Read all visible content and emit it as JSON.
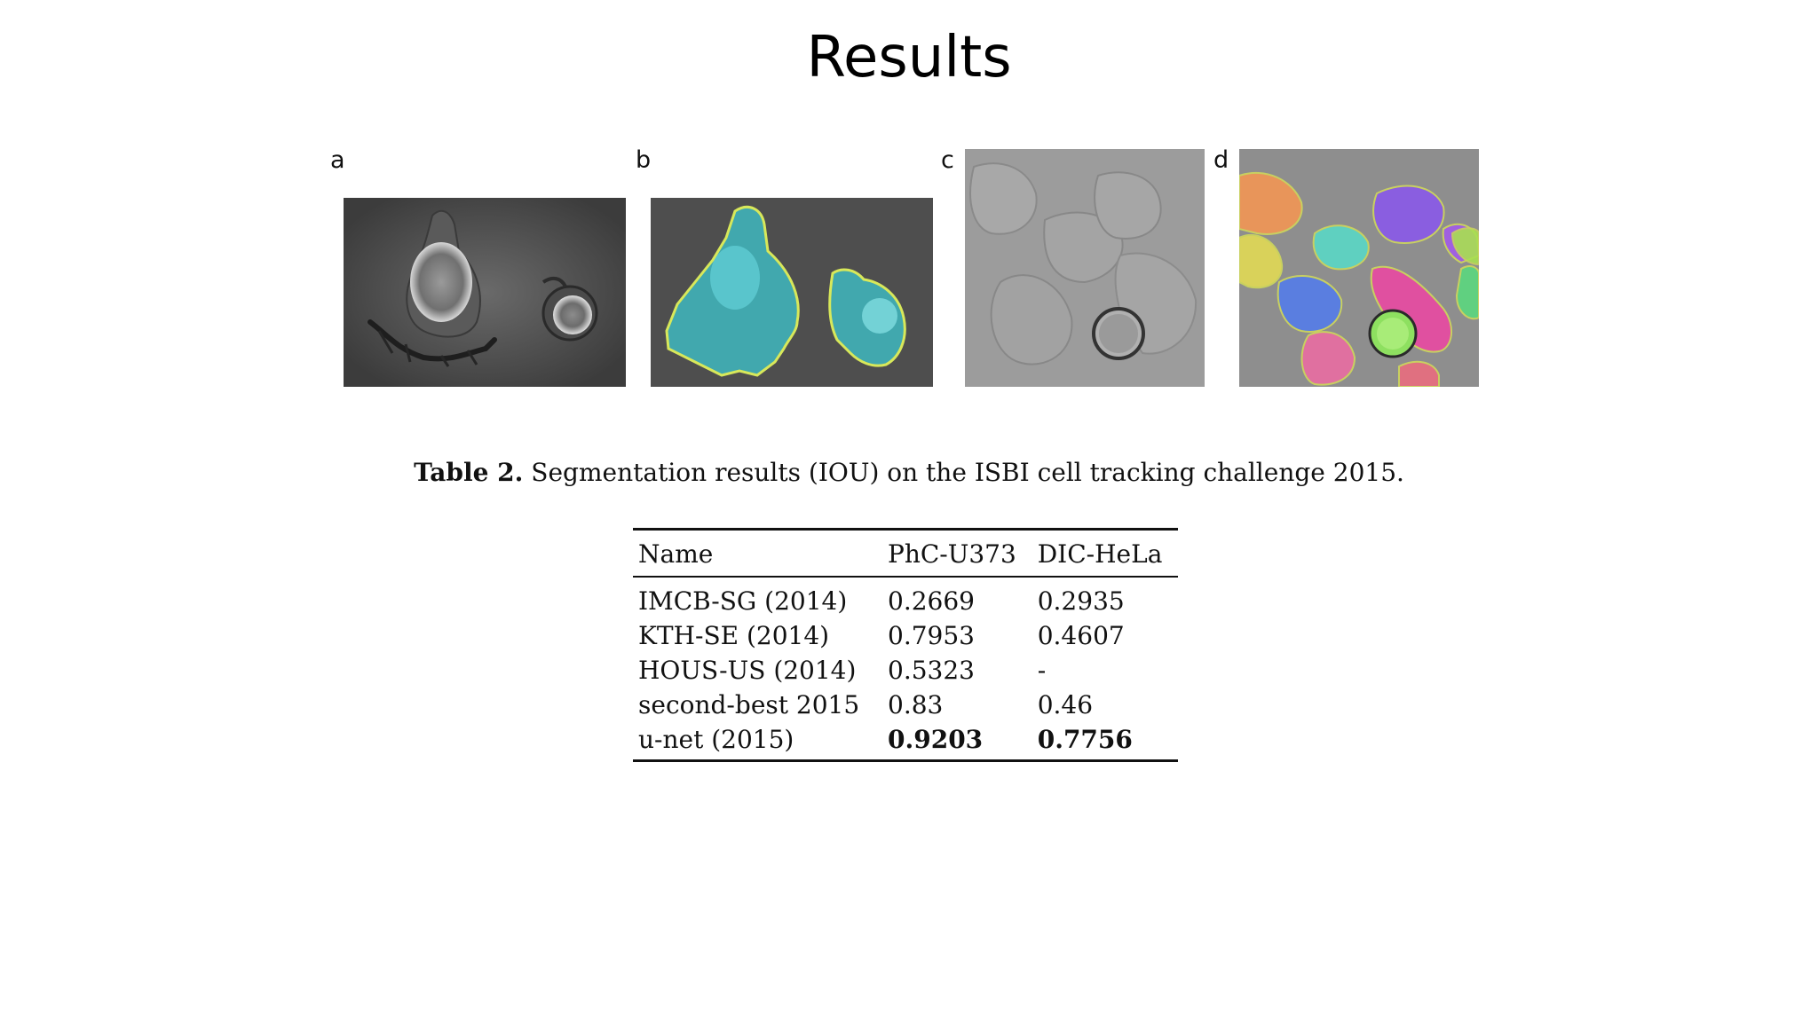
{
  "slide": {
    "title": "Results"
  },
  "figure": {
    "panels": [
      {
        "letter": "a",
        "icon": "phase-contrast-cells-image"
      },
      {
        "letter": "b",
        "icon": "phase-contrast-segmentation-overlay-image"
      },
      {
        "letter": "c",
        "icon": "dic-hela-cells-image"
      },
      {
        "letter": "d",
        "icon": "dic-hela-segmentation-overlay-image"
      }
    ]
  },
  "caption": {
    "label": "Table 2.",
    "text": "Segmentation results (IOU) on the ISBI cell tracking challenge 2015."
  },
  "table": {
    "headers": [
      "Name",
      "PhC-U373",
      "DIC-HeLa"
    ],
    "rows": [
      {
        "name": "IMCB-SG (2014)",
        "phc": "0.2669",
        "dic": "0.2935"
      },
      {
        "name": "KTH-SE (2014)",
        "phc": "0.7953",
        "dic": "0.4607"
      },
      {
        "name": "HOUS-US (2014)",
        "phc": "0.5323",
        "dic": "-"
      },
      {
        "name": "second-best 2015",
        "phc": "0.83",
        "dic": "0.46"
      },
      {
        "name": "u-net (2015)",
        "phc": "0.9203",
        "dic": "0.7756"
      }
    ],
    "bold_row": "u-net (2015)"
  },
  "colors": {
    "segmentation_cyan": "#3fb8c0",
    "segmentation_outline": "#d8e85a",
    "cell_orange": "#e8955a",
    "cell_yellow": "#d9d25a",
    "cell_purple": "#8a5ee0",
    "cell_teal": "#5fd0c0",
    "cell_blue": "#5a7ee0",
    "cell_magenta": "#e050a0",
    "cell_green": "#8ee060",
    "cell_pink": "#e07080",
    "cell_lime": "#a8e050"
  }
}
